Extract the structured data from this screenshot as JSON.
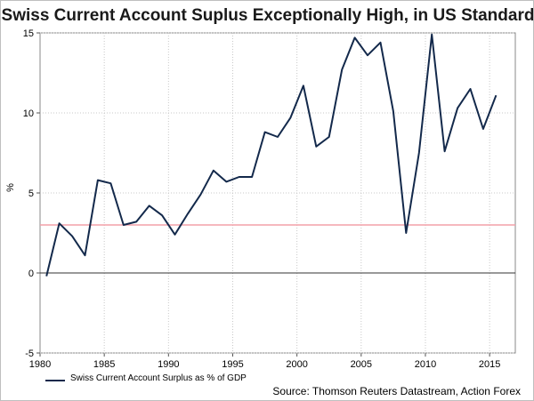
{
  "chart_data": {
    "type": "line",
    "title": "Swiss Current Account Suplus Exceptionally High, in US Standard",
    "xlabel": "",
    "ylabel": "%",
    "xlim": [
      1980,
      2017
    ],
    "ylim": [
      -5,
      15
    ],
    "xticks": [
      1980,
      1985,
      1990,
      1995,
      2000,
      2005,
      2010,
      2015
    ],
    "yticks": [
      -5,
      0,
      5,
      10,
      15
    ],
    "grid": true,
    "legend_position": "bottom-left",
    "reference_line": {
      "y": 3,
      "color": "#f4a0a8"
    },
    "series": [
      {
        "name": "Swiss Current Account Surplus as % of GDP",
        "color": "#13294b",
        "x": [
          1980.5,
          1981.5,
          1982.5,
          1983.5,
          1984.5,
          1985.5,
          1986.5,
          1987.5,
          1988.5,
          1989.5,
          1990.5,
          1991.5,
          1992.5,
          1993.5,
          1994.5,
          1995.5,
          1996.5,
          1997.5,
          1998.5,
          1999.5,
          2000.5,
          2001.5,
          2002.5,
          2003.5,
          2004.5,
          2005.5,
          2006.5,
          2007.5,
          2008.5,
          2009.5,
          2010.5,
          2011.5,
          2012.5,
          2013.5,
          2014.5,
          2015.5
        ],
        "values": [
          -0.2,
          3.1,
          2.3,
          1.1,
          5.8,
          5.6,
          3.0,
          3.2,
          4.2,
          3.6,
          2.4,
          3.7,
          4.9,
          6.4,
          5.7,
          6.0,
          6.0,
          8.8,
          8.5,
          9.7,
          11.7,
          7.9,
          8.5,
          12.7,
          14.7,
          13.6,
          14.4,
          10.1,
          2.5,
          7.5,
          14.9,
          7.6,
          10.3,
          11.5,
          9.0,
          11.1
        ]
      }
    ],
    "source": "Source: Thomson Reuters Datastream, Action Forex"
  }
}
